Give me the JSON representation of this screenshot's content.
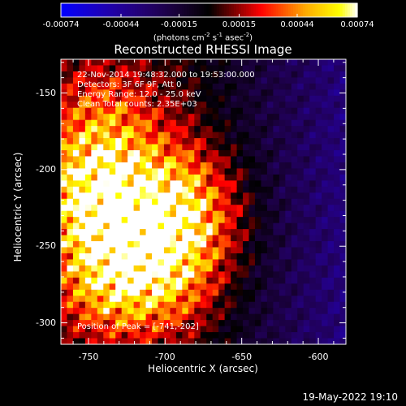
{
  "chart_data": {
    "type": "heatmap",
    "title": "Reconstructed RHESSI Image",
    "xlabel": "Heliocentric X (arcsec)",
    "ylabel": "Heliocentric Y (arcsec)",
    "xlim": [
      -768,
      -582
    ],
    "ylim": [
      -314,
      -128
    ],
    "x_ticks": [
      "-750",
      "-700",
      "-650",
      "-600"
    ],
    "x_tick_values": [
      -750,
      -700,
      -650,
      -600
    ],
    "y_ticks": [
      "-150",
      "-200",
      "-250",
      "-300"
    ],
    "y_tick_values": [
      -150,
      -200,
      -250,
      -300
    ],
    "colorbar": {
      "range": [
        -0.00074,
        0.00074
      ],
      "ticks": [
        "-0.00074",
        "-0.00044",
        "-0.00015",
        "0.00015",
        "0.00044",
        "0.00074"
      ],
      "tick_values": [
        -0.00074,
        -0.00044,
        -0.00015,
        0.00015,
        0.00044,
        0.00074
      ],
      "units_main": "(photons cm",
      "units_sup1": "-2",
      "units_mid1": " s",
      "units_sup2": "-1",
      "units_mid2": " asec",
      "units_sup3": "-2",
      "units_end": ")"
    },
    "annotations": {
      "time": "22-Nov-2014 19:48:32.000 to 19:53:00.000",
      "detectors": "Detectors: 3F 6F 9F, Att 0",
      "energy": "Energy Range: 12.0 - 25.0 keV",
      "algorithm": "Clean     Total counts: 2.35E+03",
      "peak": "Position of Peak = [-741,-202]"
    },
    "sources": [
      {
        "x": -745,
        "y": -215,
        "amp": 1.0
      },
      {
        "x": -735,
        "y": -270,
        "amp": 0.75
      },
      {
        "x": -690,
        "y": -225,
        "amp": 0.8
      },
      {
        "x": -700,
        "y": -265,
        "amp": 0.55
      },
      {
        "x": -740,
        "y": -165,
        "amp": 0.45
      }
    ],
    "colors": {
      "background": "#000000",
      "axis": "#ffffff",
      "min": "#0000ff",
      "mid": "#000000",
      "max": "#ffffff"
    }
  },
  "footer": {
    "date": "19-May-2022 19:10"
  }
}
